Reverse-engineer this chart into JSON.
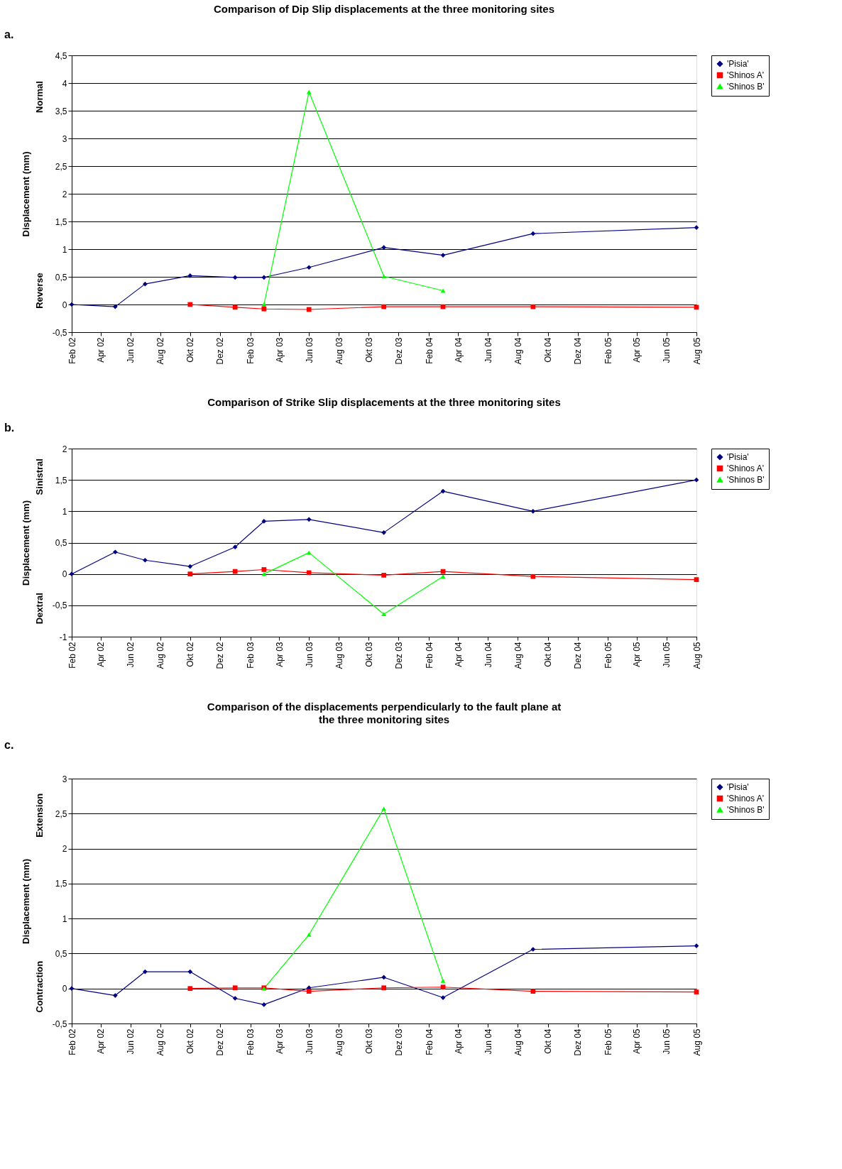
{
  "chart_data": [
    {
      "type": "line",
      "title": "Comparison of Dip Slip displacements at the three monitoring sites",
      "ylabel": "Displacement (mm)",
      "annotations": [
        "a.",
        "Normal",
        "Reverse"
      ],
      "grid": "y",
      "legend": "right",
      "line_style": "solid",
      "xlim": [
        "2002-02",
        "2005-08"
      ],
      "ylim": [
        -0.5,
        4.5
      ],
      "yticks": [
        {
          "value": -0.5,
          "label": "-0,5"
        },
        0,
        {
          "value": 0.5,
          "label": "0,5"
        },
        1,
        {
          "value": 1.5,
          "label": "1,5"
        },
        2,
        {
          "value": 2.5,
          "label": "2,5"
        },
        3,
        {
          "value": 3.5,
          "label": "3,5"
        },
        4,
        {
          "value": 4.5,
          "label": "4,5"
        }
      ],
      "xticks": [
        {
          "value": "2002-02",
          "label": "Feb 02"
        },
        {
          "value": "2002-04",
          "label": "Apr 02"
        },
        {
          "value": "2002-06",
          "label": "Jun 02"
        },
        {
          "value": "2002-08",
          "label": "Aug 02"
        },
        {
          "value": "2002-10",
          "label": "Okt 02"
        },
        {
          "value": "2002-12",
          "label": "Dez 02"
        },
        {
          "value": "2003-02",
          "label": "Feb 03"
        },
        {
          "value": "2003-04",
          "label": "Apr 03"
        },
        {
          "value": "2003-06",
          "label": "Jun 03"
        },
        {
          "value": "2003-08",
          "label": "Aug 03"
        },
        {
          "value": "2003-10",
          "label": "Okt 03"
        },
        {
          "value": "2003-12",
          "label": "Dez 03"
        },
        {
          "value": "2004-02",
          "label": "Feb 04"
        },
        {
          "value": "2004-04",
          "label": "Apr 04"
        },
        {
          "value": "2004-06",
          "label": "Jun 04"
        },
        {
          "value": "2004-08",
          "label": "Aug 04"
        },
        {
          "value": "2004-10",
          "label": "Okt 04"
        },
        {
          "value": "2004-12",
          "label": "Dez 04"
        },
        {
          "value": "2005-02",
          "label": "Feb 05"
        },
        {
          "value": "2005-04",
          "label": "Apr 05"
        },
        {
          "value": "2005-06",
          "label": "Jun 05"
        },
        {
          "value": "2005-08",
          "label": "Aug 05"
        }
      ],
      "series": [
        {
          "name": "'Pisia'",
          "color": "#000080",
          "marker": "diamond",
          "x": [
            "2002-02",
            "2002-05",
            "2002-07",
            "2002-10",
            "2003-01",
            "2003-03",
            "2003-06",
            "2003-11",
            "2004-03",
            "2004-09",
            "2005-08"
          ],
          "values": [
            0,
            -0.04,
            0.37,
            0.52,
            0.49,
            0.49,
            0.67,
            1.03,
            0.89,
            1.28,
            1.39
          ]
        },
        {
          "name": "'Shinos A'",
          "color": "#ff0000",
          "marker": "square",
          "x": [
            "2002-10",
            "2003-01",
            "2003-03",
            "2003-06",
            "2003-11",
            "2004-03",
            "2004-09",
            "2005-08"
          ],
          "values": [
            0,
            -0.05,
            -0.08,
            -0.09,
            -0.04,
            -0.04,
            -0.04,
            -0.05
          ]
        },
        {
          "name": "'Shinos B'",
          "color": "#00ff00",
          "marker": "triangle",
          "x": [
            "2003-03",
            "2003-06",
            "2003-11",
            "2004-03"
          ],
          "values": [
            0,
            3.84,
            0.51,
            0.25
          ]
        }
      ]
    },
    {
      "type": "line",
      "title": "Comparison of Strike Slip displacements at the three monitoring sites",
      "ylabel": "Displacement (mm)",
      "annotations": [
        "b.",
        "Sinistral",
        "Dextral"
      ],
      "grid": "y",
      "legend": "right",
      "line_style": "solid",
      "xlim": [
        "2002-02",
        "2005-08"
      ],
      "ylim": [
        -1,
        2
      ],
      "yticks": [
        -1,
        {
          "value": -0.5,
          "label": "-0,5"
        },
        0,
        {
          "value": 0.5,
          "label": "0,5"
        },
        1,
        {
          "value": 1.5,
          "label": "1,5"
        },
        2
      ],
      "xticks": [
        {
          "value": "2002-02",
          "label": "Feb 02"
        },
        {
          "value": "2002-04",
          "label": "Apr 02"
        },
        {
          "value": "2002-06",
          "label": "Jun 02"
        },
        {
          "value": "2002-08",
          "label": "Aug 02"
        },
        {
          "value": "2002-10",
          "label": "Okt 02"
        },
        {
          "value": "2002-12",
          "label": "Dez 02"
        },
        {
          "value": "2003-02",
          "label": "Feb 03"
        },
        {
          "value": "2003-04",
          "label": "Apr 03"
        },
        {
          "value": "2003-06",
          "label": "Jun 03"
        },
        {
          "value": "2003-08",
          "label": "Aug 03"
        },
        {
          "value": "2003-10",
          "label": "Okt 03"
        },
        {
          "value": "2003-12",
          "label": "Dez 03"
        },
        {
          "value": "2004-02",
          "label": "Feb 04"
        },
        {
          "value": "2004-04",
          "label": "Apr 04"
        },
        {
          "value": "2004-06",
          "label": "Jun 04"
        },
        {
          "value": "2004-08",
          "label": "Aug 04"
        },
        {
          "value": "2004-10",
          "label": "Okt 04"
        },
        {
          "value": "2004-12",
          "label": "Dez 04"
        },
        {
          "value": "2005-02",
          "label": "Feb 05"
        },
        {
          "value": "2005-04",
          "label": "Apr 05"
        },
        {
          "value": "2005-06",
          "label": "Jun 05"
        },
        {
          "value": "2005-08",
          "label": "Aug 05"
        }
      ],
      "series": [
        {
          "name": "'Pisia'",
          "color": "#000080",
          "marker": "diamond",
          "x": [
            "2002-02",
            "2002-05",
            "2002-07",
            "2002-10",
            "2003-01",
            "2003-03",
            "2003-06",
            "2003-11",
            "2004-03",
            "2004-09",
            "2005-08"
          ],
          "values": [
            0,
            0.35,
            0.22,
            0.12,
            0.43,
            0.84,
            0.87,
            0.66,
            1.32,
            1.0,
            1.5
          ]
        },
        {
          "name": "'Shinos A'",
          "color": "#ff0000",
          "marker": "square",
          "x": [
            "2002-10",
            "2003-01",
            "2003-03",
            "2003-06",
            "2003-11",
            "2004-03",
            "2004-09",
            "2005-08"
          ],
          "values": [
            0,
            0.04,
            0.07,
            0.02,
            -0.02,
            0.04,
            -0.04,
            -0.09
          ]
        },
        {
          "name": "'Shinos B'",
          "color": "#00ff00",
          "marker": "triangle",
          "x": [
            "2003-03",
            "2003-06",
            "2003-11",
            "2004-03"
          ],
          "values": [
            0,
            0.34,
            -0.64,
            -0.04
          ]
        }
      ]
    },
    {
      "type": "line",
      "title": "Comparison of the displacements perpendicularly to the fault plane at the three monitoring sites",
      "ylabel": "Displacement (mm)",
      "annotations": [
        "c.",
        "Extension",
        "Contraction"
      ],
      "grid": "y",
      "legend": "right",
      "line_style": "solid",
      "xlim": [
        "2002-02",
        "2005-08"
      ],
      "ylim": [
        -0.5,
        3
      ],
      "yticks": [
        {
          "value": -0.5,
          "label": "-0,5"
        },
        0,
        {
          "value": 0.5,
          "label": "0,5"
        },
        1,
        {
          "value": 1.5,
          "label": "1,5"
        },
        2,
        {
          "value": 2.5,
          "label": "2,5"
        },
        3
      ],
      "xticks": [
        {
          "value": "2002-02",
          "label": "Feb 02"
        },
        {
          "value": "2002-04",
          "label": "Apr 02"
        },
        {
          "value": "2002-06",
          "label": "Jun 02"
        },
        {
          "value": "2002-08",
          "label": "Aug 02"
        },
        {
          "value": "2002-10",
          "label": "Okt 02"
        },
        {
          "value": "2002-12",
          "label": "Dez 02"
        },
        {
          "value": "2003-02",
          "label": "Feb 03"
        },
        {
          "value": "2003-04",
          "label": "Apr 03"
        },
        {
          "value": "2003-06",
          "label": "Jun 03"
        },
        {
          "value": "2003-08",
          "label": "Aug 03"
        },
        {
          "value": "2003-10",
          "label": "Okt 03"
        },
        {
          "value": "2003-12",
          "label": "Dez 03"
        },
        {
          "value": "2004-02",
          "label": "Feb 04"
        },
        {
          "value": "2004-04",
          "label": "Apr 04"
        },
        {
          "value": "2004-06",
          "label": "Jun 04"
        },
        {
          "value": "2004-08",
          "label": "Aug 04"
        },
        {
          "value": "2004-10",
          "label": "Okt 04"
        },
        {
          "value": "2004-12",
          "label": "Dez 04"
        },
        {
          "value": "2005-02",
          "label": "Feb 05"
        },
        {
          "value": "2005-04",
          "label": "Apr 05"
        },
        {
          "value": "2005-06",
          "label": "Jun 05"
        },
        {
          "value": "2005-08",
          "label": "Aug 05"
        }
      ],
      "series": [
        {
          "name": "'Pisia'",
          "color": "#000080",
          "marker": "diamond",
          "x": [
            "2002-02",
            "2002-05",
            "2002-07",
            "2002-10",
            "2003-01",
            "2003-03",
            "2003-06",
            "2003-11",
            "2004-03",
            "2004-09",
            "2005-08"
          ],
          "values": [
            0,
            -0.1,
            0.24,
            0.24,
            -0.14,
            -0.23,
            0.01,
            0.16,
            -0.13,
            0.56,
            0.61
          ]
        },
        {
          "name": "'Shinos A'",
          "color": "#ff0000",
          "marker": "square",
          "x": [
            "2002-10",
            "2003-01",
            "2003-03",
            "2003-06",
            "2003-11",
            "2004-03",
            "2004-09",
            "2005-08"
          ],
          "values": [
            0,
            0.01,
            0.01,
            -0.04,
            0.01,
            0.02,
            -0.04,
            -0.05
          ]
        },
        {
          "name": "'Shinos B'",
          "color": "#00ff00",
          "marker": "triangle",
          "x": [
            "2003-03",
            "2003-06",
            "2003-11",
            "2004-03"
          ],
          "values": [
            0,
            0.77,
            2.57,
            0.11
          ]
        }
      ]
    }
  ]
}
